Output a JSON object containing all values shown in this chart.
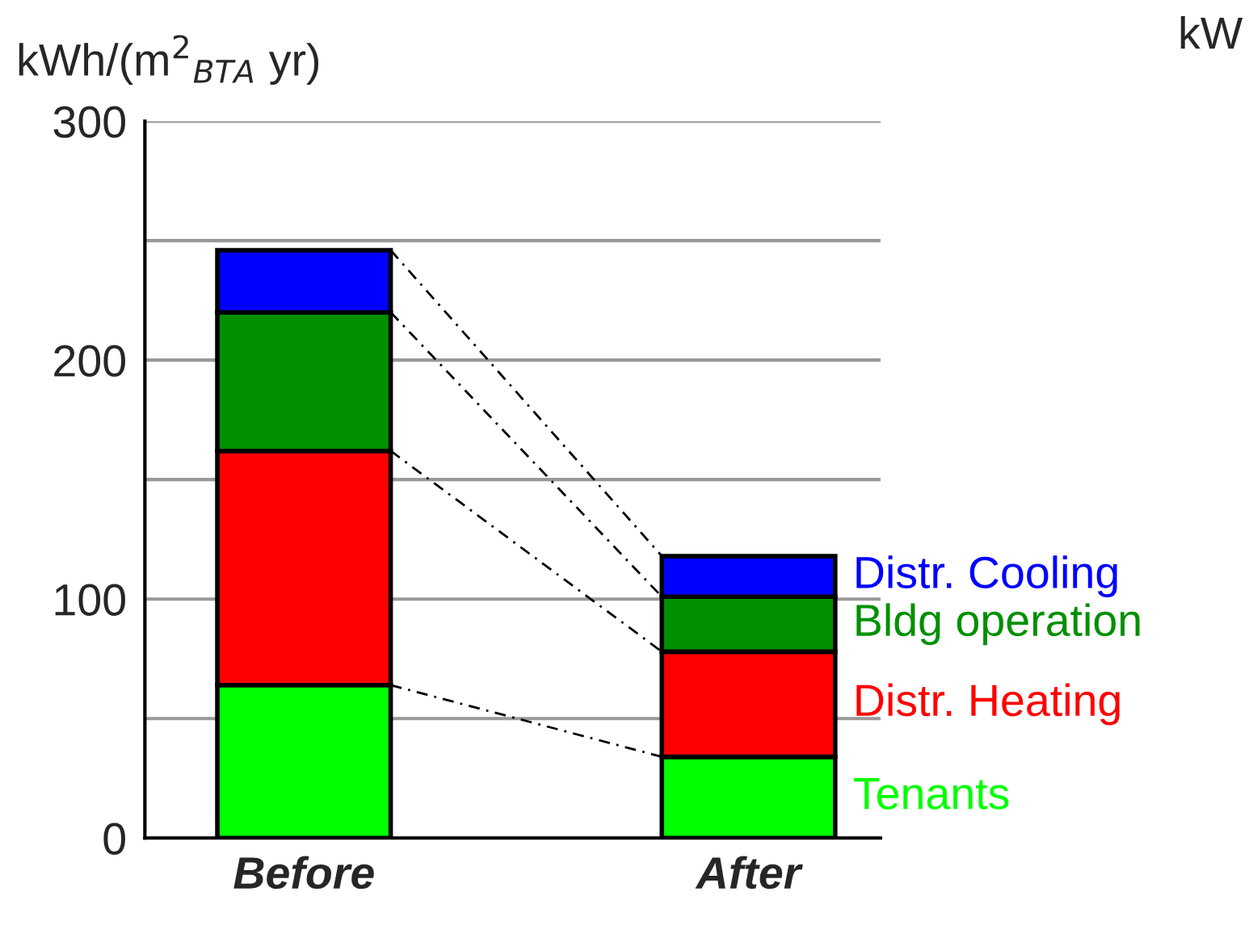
{
  "chart_data": {
    "type": "bar",
    "stacked": true,
    "ylabel": "kWh/(m$^{2}$$_{BTA}$ yr)",
    "categories": [
      "Before",
      "After"
    ],
    "series": [
      {
        "name": "Tenants",
        "color": "#00ff00",
        "values": [
          64,
          34
        ]
      },
      {
        "name": "Distr. Heating",
        "color": "#ff0000",
        "values": [
          98,
          44
        ]
      },
      {
        "name": "Bldg operation",
        "color": "#009000",
        "values": [
          58,
          23
        ]
      },
      {
        "name": "Distr. Cooling",
        "color": "#0000ff",
        "values": [
          26,
          17
        ]
      }
    ],
    "ylim": [
      0,
      300
    ],
    "yticks": [
      0,
      {
        "value": 50,
        "label": null
      },
      100,
      {
        "value": 150,
        "label": null
      },
      200,
      {
        "value": 250,
        "label": null
      },
      300
    ],
    "grid": "y",
    "annotations": [
      "kW"
    ]
  }
}
